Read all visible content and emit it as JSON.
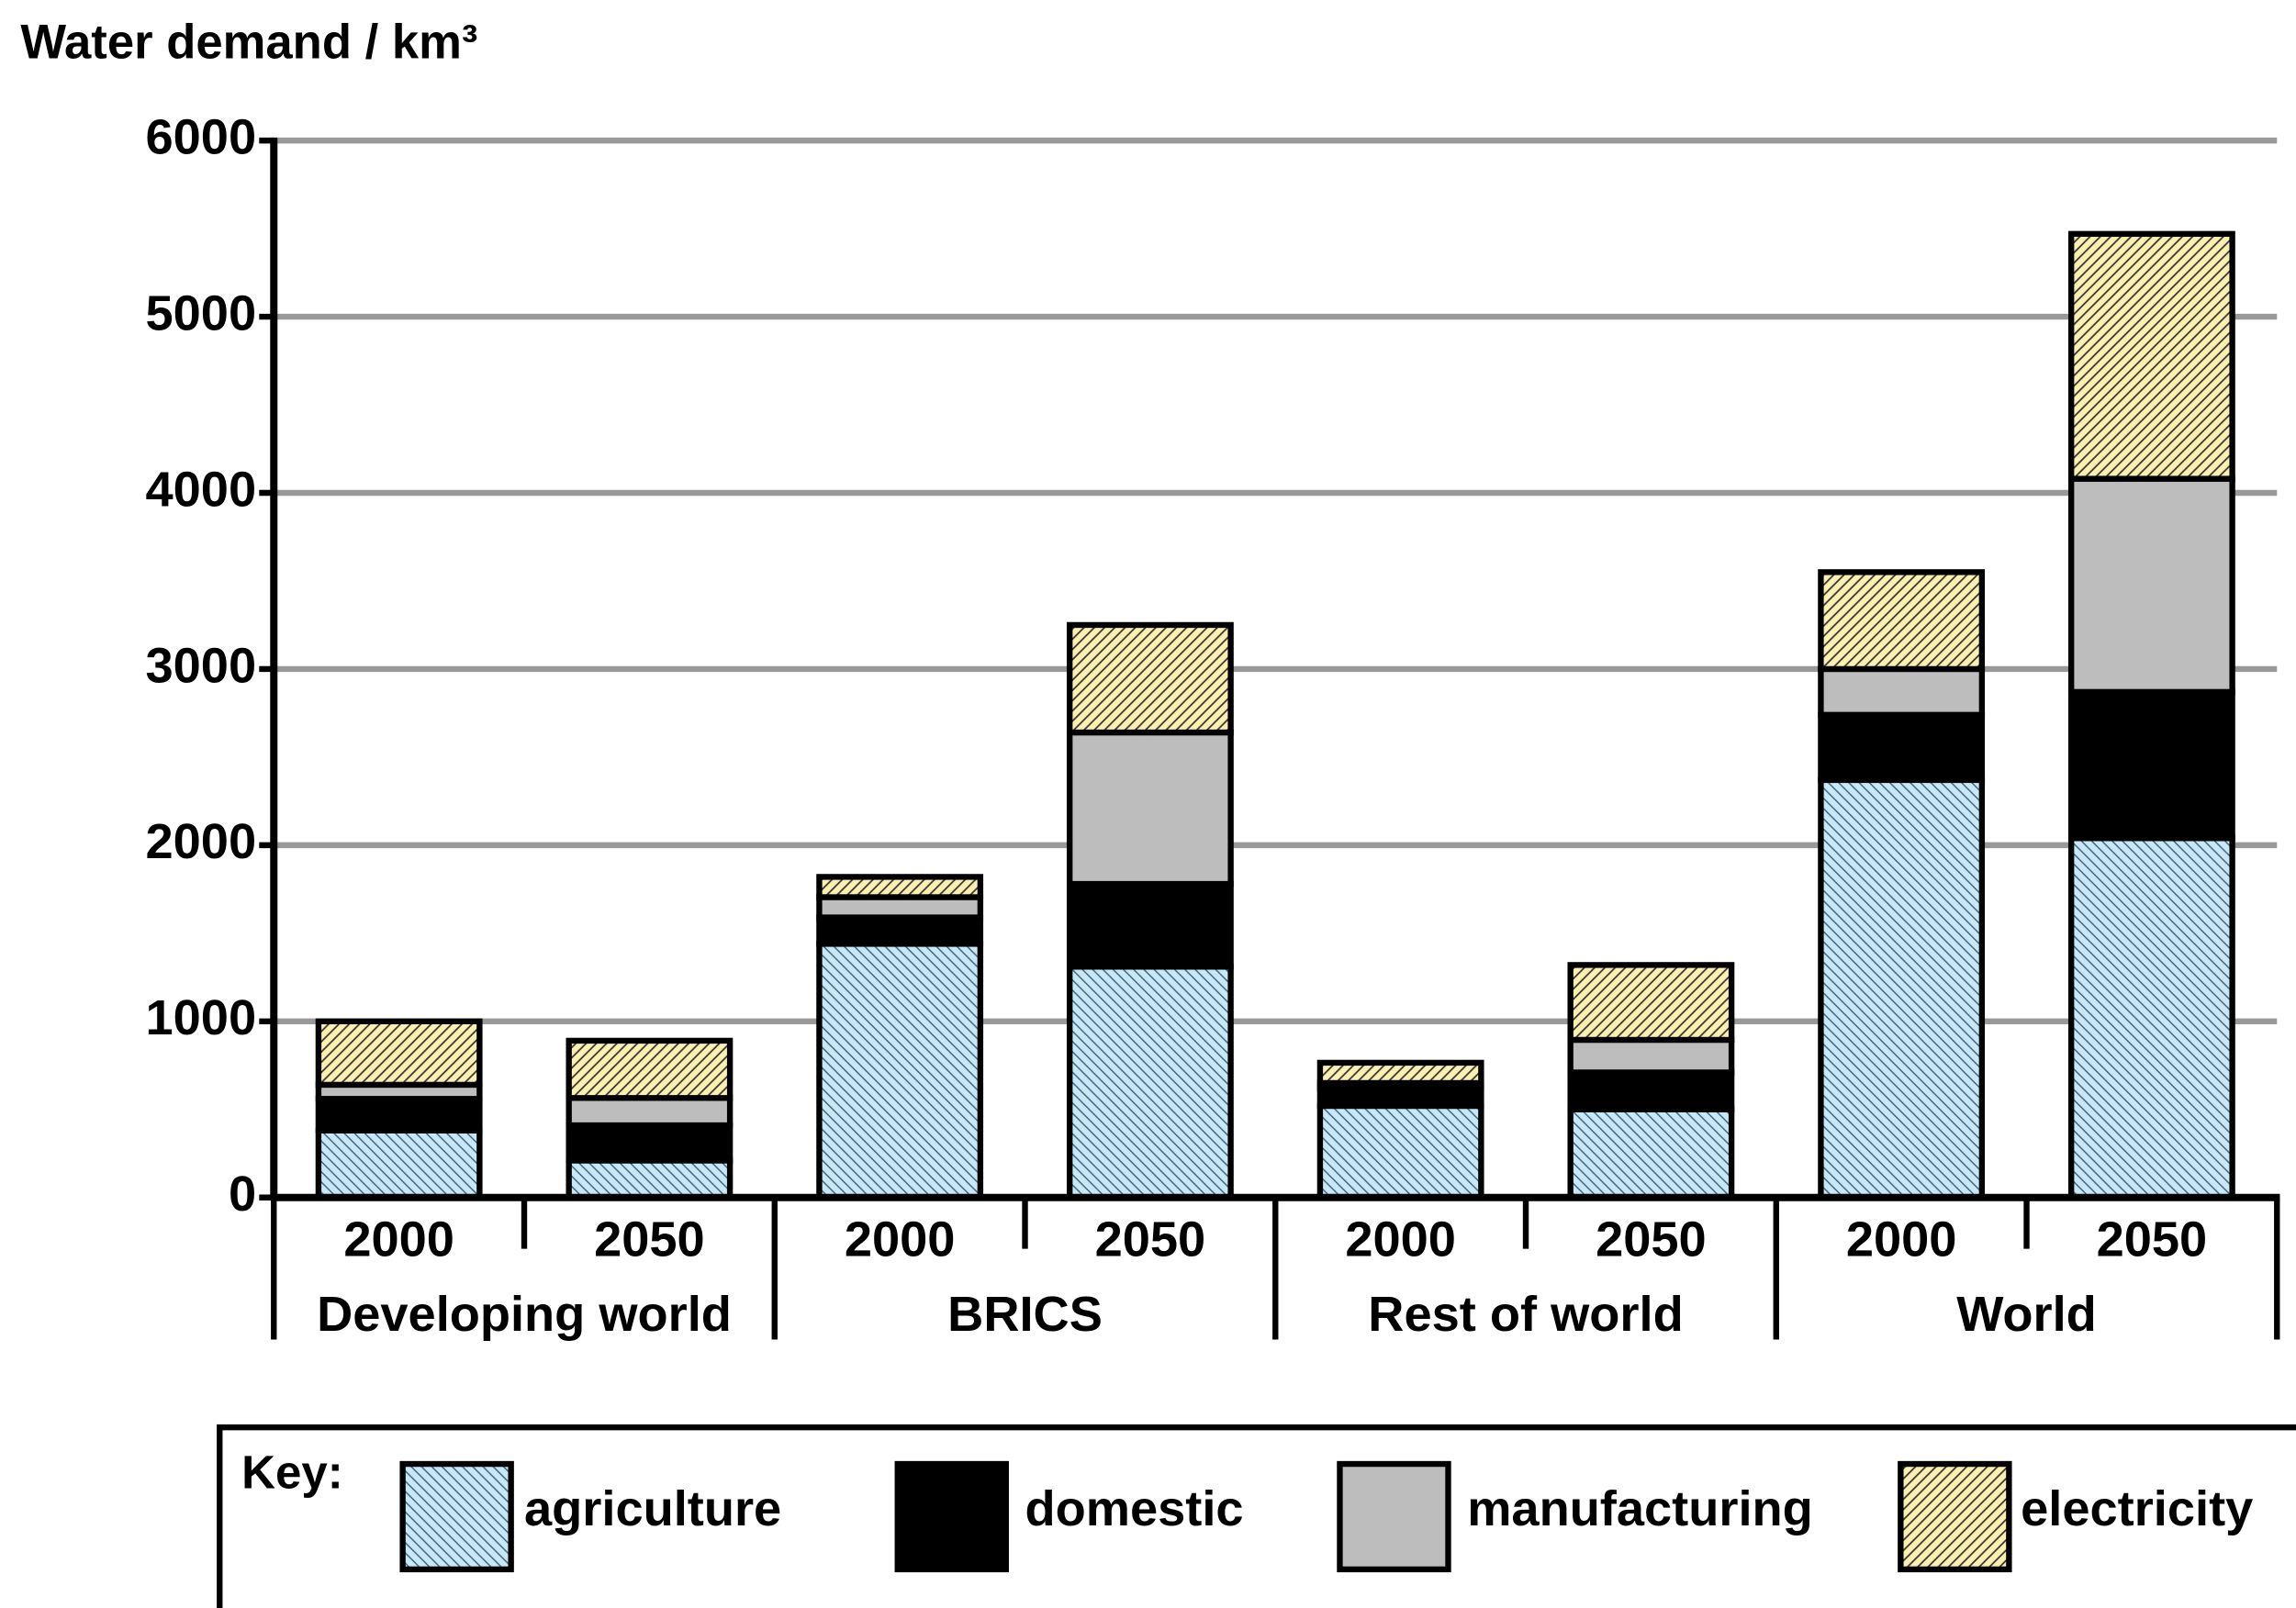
{
  "chart_data": {
    "type": "stacked_bar",
    "y_label": "Water demand / km³",
    "categories": [
      "2000",
      "2050",
      "2000",
      "2050",
      "2000",
      "2050",
      "2000",
      "2050"
    ],
    "groups": [
      "Developing world",
      "BRICS",
      "Rest of world",
      "World"
    ],
    "series": [
      {
        "name": "agriculture",
        "color": "#c8e8f6",
        "hatch": "backslash",
        "values": [
          380,
          210,
          1440,
          1310,
          520,
          500,
          2370,
          2040
        ]
      },
      {
        "name": "domestic",
        "color": "#000000",
        "hatch": null,
        "values": [
          180,
          200,
          150,
          470,
          100,
          210,
          370,
          830
        ]
      },
      {
        "name": "manufacturing",
        "color": "#bdbdbd",
        "hatch": null,
        "values": [
          80,
          155,
          115,
          860,
          30,
          185,
          260,
          1210
        ]
      },
      {
        "name": "electricity",
        "color": "#fbf0b0",
        "hatch": "slash",
        "values": [
          360,
          325,
          115,
          610,
          115,
          425,
          550,
          1390
        ]
      }
    ],
    "ylim": [
      0,
      6000
    ],
    "yticks": [
      0,
      1000,
      2000,
      3000,
      4000,
      5000,
      6000
    ],
    "grid": true,
    "legend_title": "Key:",
    "legend_position": "bottom"
  }
}
